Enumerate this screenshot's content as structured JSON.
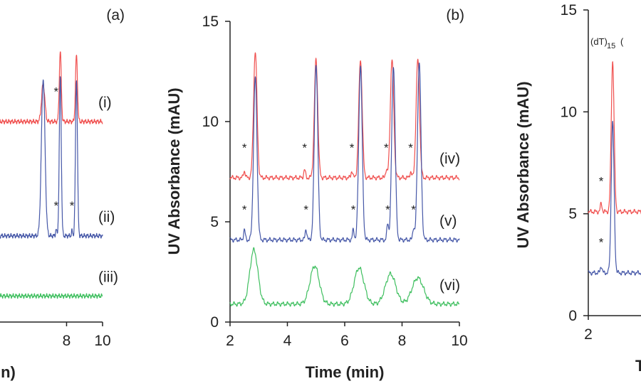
{
  "colors": {
    "red": "#f0504f",
    "blue": "#4658a8",
    "green": "#3fbf5f"
  },
  "chart_data": [
    {
      "type": "line",
      "panel_label": "(a)",
      "xlabel_fragment": "in)",
      "x_ticks": [
        8,
        10
      ],
      "xlim": [
        4.3,
        10
      ],
      "ylim": [
        0,
        15
      ],
      "series": [
        {
          "name": "(i)",
          "color": "red",
          "baseline": 10.0,
          "peaks": [
            [
              6.7,
              1.9,
              0.09
            ],
            [
              7.65,
              3.5,
              0.055
            ],
            [
              8.55,
              3.3,
              0.055
            ]
          ],
          "asterisks": [
            7.42
          ]
        },
        {
          "name": "(ii)",
          "color": "blue",
          "baseline": 4.3,
          "peaks": [
            [
              6.7,
              7.8,
              0.1
            ],
            [
              7.65,
              7.9,
              0.055
            ],
            [
              8.55,
              7.8,
              0.055
            ],
            [
              7.42,
              0.35,
              0.03
            ],
            [
              8.3,
              0.25,
              0.03
            ]
          ],
          "asterisks": [
            7.42,
            8.3
          ]
        },
        {
          "name": "(iii)",
          "color": "green",
          "baseline": 1.3,
          "peaks": [],
          "asterisks": []
        }
      ]
    },
    {
      "type": "line",
      "panel_label": "(b)",
      "ylabel": "UV Absorbance (mAU)",
      "xlabel": "Time (min)",
      "x_ticks": [
        2,
        4,
        6,
        8,
        10
      ],
      "y_ticks": [
        0,
        5,
        10,
        15
      ],
      "xlim": [
        2,
        10
      ],
      "ylim": [
        0,
        15
      ],
      "series": [
        {
          "name": "(iv)",
          "color": "red",
          "baseline": 7.2,
          "peaks": [
            [
              2.88,
              6.3,
              0.06
            ],
            [
              5.0,
              5.9,
              0.06
            ],
            [
              6.55,
              5.9,
              0.06
            ],
            [
              7.65,
              5.9,
              0.06
            ],
            [
              8.55,
              5.9,
              0.06
            ],
            [
              2.5,
              0.35,
              0.03
            ],
            [
              4.6,
              0.4,
              0.03
            ],
            [
              6.25,
              0.35,
              0.03
            ],
            [
              7.45,
              0.4,
              0.03
            ],
            [
              8.3,
              0.3,
              0.03
            ]
          ],
          "asterisks": [
            2.5,
            4.6,
            6.25,
            7.45,
            8.3
          ]
        },
        {
          "name": "(v)",
          "color": "blue",
          "baseline": 4.1,
          "peaks": [
            [
              2.88,
              8.1,
              0.06
            ],
            [
              5.0,
              8.8,
              0.06
            ],
            [
              6.55,
              8.7,
              0.06
            ],
            [
              7.7,
              8.7,
              0.06
            ],
            [
              8.6,
              8.9,
              0.06
            ],
            [
              2.5,
              0.5,
              0.03
            ],
            [
              4.65,
              0.55,
              0.03
            ],
            [
              6.3,
              0.5,
              0.03
            ],
            [
              7.5,
              0.8,
              0.03
            ],
            [
              8.4,
              0.6,
              0.03
            ]
          ],
          "asterisks": [
            2.5,
            4.65,
            6.3,
            7.5,
            8.4
          ]
        },
        {
          "name": "(vi)",
          "color": "green",
          "baseline": 0.9,
          "peaks": [
            [
              2.83,
              2.7,
              0.14
            ],
            [
              4.95,
              1.9,
              0.16
            ],
            [
              6.5,
              1.8,
              0.17
            ],
            [
              7.6,
              1.5,
              0.18
            ],
            [
              8.55,
              1.3,
              0.2
            ]
          ],
          "asterisks": []
        }
      ]
    },
    {
      "type": "line",
      "ylabel": "UV Absorbance (mAU)",
      "xlabel_fragment": "T",
      "x_ticks": [
        2
      ],
      "y_ticks": [
        0,
        5,
        10,
        15
      ],
      "xlim": [
        2,
        10
      ],
      "ylim": [
        0,
        15
      ],
      "annotation": {
        "base": "(dT)",
        "sub": "15",
        "extra": "("
      },
      "series": [
        {
          "name": "",
          "color": "red",
          "baseline": 5.1,
          "peaks": [
            [
              2.85,
              7.4,
              0.05
            ],
            [
              2.45,
              0.4,
              0.03
            ]
          ],
          "asterisks": [
            2.45
          ]
        },
        {
          "name": "",
          "color": "blue",
          "baseline": 2.1,
          "peaks": [
            [
              2.85,
              7.4,
              0.05
            ],
            [
              2.45,
              0.35,
              0.03
            ]
          ],
          "asterisks": [
            2.45
          ]
        }
      ]
    }
  ]
}
